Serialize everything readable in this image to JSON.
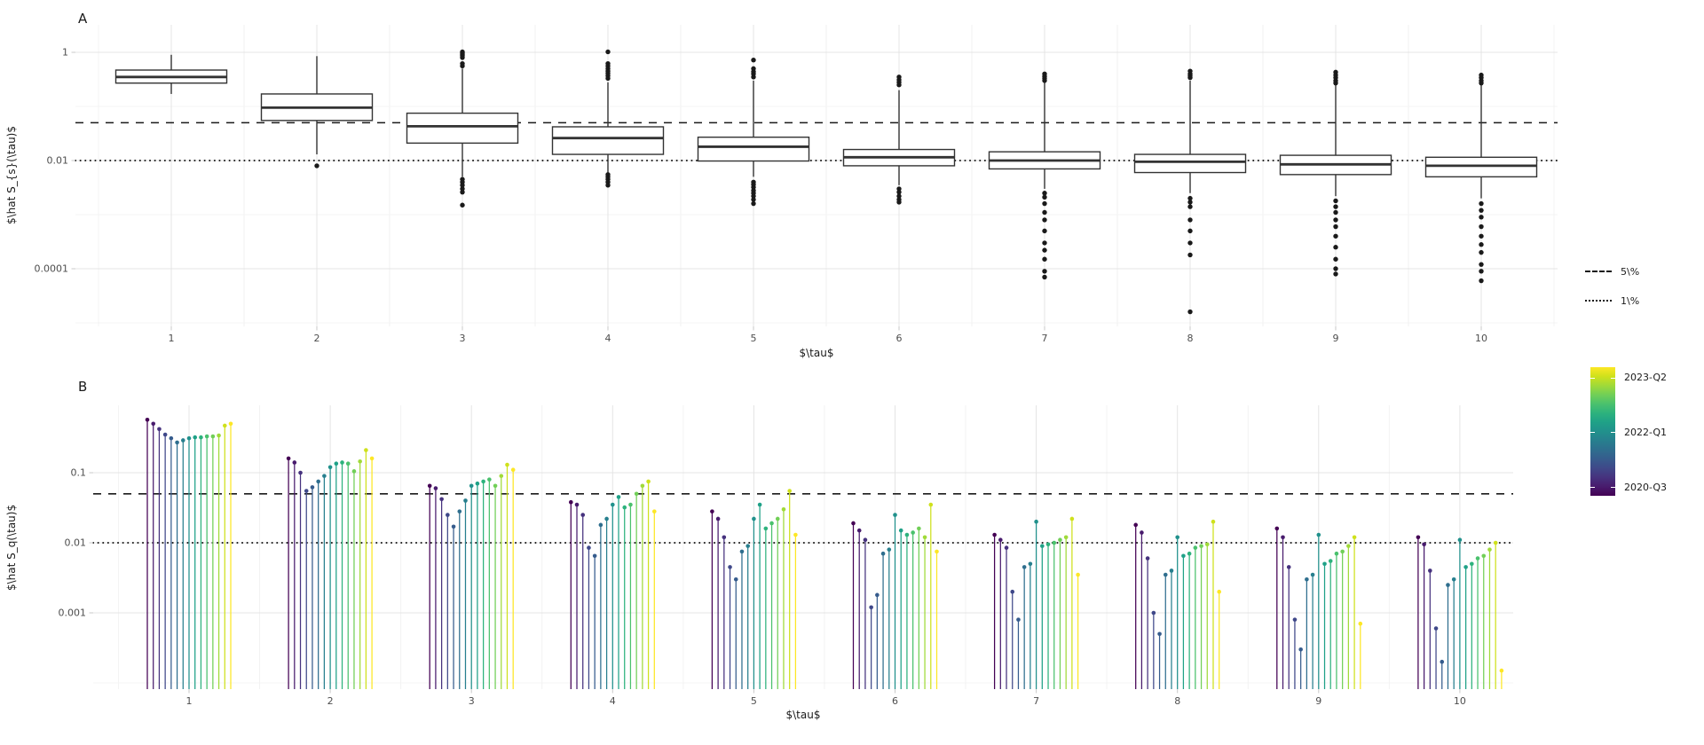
{
  "figure": {
    "background": "#ffffff",
    "grid_major_color": "#e4e4e4",
    "grid_minor_color": "#f2f2f2",
    "tick_color": "#c9c9c9",
    "tick_label_color": "#4d4d4d",
    "box_stroke": "#333333",
    "outlier_color": "#1a1a1a"
  },
  "chart_data": [
    {
      "type": "boxplot",
      "panel_label": "A",
      "xlabel": "$\\tau$",
      "ylabel": "$\\hat S_{s}(\\tau)$",
      "yscale": "log",
      "x_ticks": [
        "1",
        "2",
        "3",
        "4",
        "5",
        "6",
        "7",
        "8",
        "9",
        "10"
      ],
      "y_ticks": [
        {
          "value": 1,
          "label": "1"
        },
        {
          "value": 0.01,
          "label": "0.01"
        },
        {
          "value": 0.0001,
          "label": "0.0001"
        }
      ],
      "y_minor": [
        0.1,
        0.001,
        1e-05
      ],
      "reference_lines": [
        {
          "style": "dashed",
          "value": 0.05,
          "label": "5\\%"
        },
        {
          "style": "dotted",
          "value": 0.01,
          "label": "1\\%"
        }
      ],
      "boxes": [
        {
          "x": 1,
          "whisker_low": 0.17,
          "q1": 0.27,
          "median": 0.35,
          "q3": 0.47,
          "whisker_high": 0.9,
          "outliers_high": [],
          "outliers_low": []
        },
        {
          "x": 2,
          "whisker_low": 0.013,
          "q1": 0.055,
          "median": 0.095,
          "q3": 0.17,
          "whisker_high": 0.85,
          "outliers_high": [],
          "outliers_low": [
            0.008
          ]
        },
        {
          "x": 3,
          "whisker_low": 0.005,
          "q1": 0.021,
          "median": 0.043,
          "q3": 0.075,
          "whisker_high": 0.5,
          "outliers_high": [
            1.02,
            0.97,
            0.92,
            0.87,
            0.8,
            0.62,
            0.56
          ],
          "outliers_low": [
            0.0045,
            0.004,
            0.0035,
            0.003,
            0.0026,
            0.0015
          ]
        },
        {
          "x": 4,
          "whisker_low": 0.006,
          "q1": 0.013,
          "median": 0.026,
          "q3": 0.042,
          "whisker_high": 0.28,
          "outliers_high": [
            1.02,
            0.62,
            0.56,
            0.5,
            0.45,
            0.41,
            0.37,
            0.33
          ],
          "outliers_low": [
            0.0055,
            0.005,
            0.0045,
            0.004,
            0.0035
          ]
        },
        {
          "x": 5,
          "whisker_low": 0.005,
          "q1": 0.0098,
          "median": 0.018,
          "q3": 0.027,
          "whisker_high": 0.3,
          "outliers_high": [
            0.72,
            0.5,
            0.44,
            0.4,
            0.35
          ],
          "outliers_low": [
            0.004,
            0.0036,
            0.0032,
            0.0028,
            0.0025,
            0.0022,
            0.0019,
            0.0016
          ]
        },
        {
          "x": 6,
          "whisker_low": 0.0035,
          "q1": 0.008,
          "median": 0.0115,
          "q3": 0.016,
          "whisker_high": 0.2,
          "outliers_high": [
            0.35,
            0.31,
            0.28,
            0.25
          ],
          "outliers_low": [
            0.003,
            0.0026,
            0.0022,
            0.0019,
            0.0017
          ]
        },
        {
          "x": 7,
          "whisker_low": 0.003,
          "q1": 0.007,
          "median": 0.01,
          "q3": 0.0145,
          "whisker_high": 0.28,
          "outliers_high": [
            0.4,
            0.36,
            0.33,
            0.3
          ],
          "outliers_low": [
            0.0025,
            0.0021,
            0.0016,
            0.0011,
            0.0008,
            0.0005,
            0.0003,
            0.00022,
            0.00015,
            9e-05,
            7e-05
          ]
        },
        {
          "x": 8,
          "whisker_low": 0.0025,
          "q1": 0.006,
          "median": 0.0095,
          "q3": 0.013,
          "whisker_high": 0.3,
          "outliers_high": [
            0.45,
            0.4,
            0.37,
            0.34
          ],
          "outliers_low": [
            0.002,
            0.0017,
            0.0014,
            0.0008,
            0.0005,
            0.0003,
            0.00018,
            1.6e-05
          ]
        },
        {
          "x": 9,
          "whisker_low": 0.0022,
          "q1": 0.0055,
          "median": 0.0085,
          "q3": 0.0125,
          "whisker_high": 0.28,
          "outliers_high": [
            0.43,
            0.38,
            0.34,
            0.3,
            0.27
          ],
          "outliers_low": [
            0.0018,
            0.0014,
            0.0011,
            0.0008,
            0.0006,
            0.0004,
            0.00025,
            0.00015,
            0.0001,
            8e-05
          ]
        },
        {
          "x": 10,
          "whisker_low": 0.002,
          "q1": 0.005,
          "median": 0.008,
          "q3": 0.0115,
          "whisker_high": 0.26,
          "outliers_high": [
            0.38,
            0.34,
            0.3,
            0.27
          ],
          "outliers_low": [
            0.0016,
            0.0012,
            0.0009,
            0.0006,
            0.0004,
            0.00028,
            0.0002,
            0.00012,
            9e-05,
            6e-05
          ]
        }
      ]
    },
    {
      "type": "lollipop",
      "panel_label": "B",
      "xlabel": "$\\tau$",
      "ylabel": "$\\hat S_q(\\tau)$",
      "yscale": "log",
      "x_ticks": [
        "1",
        "2",
        "3",
        "4",
        "5",
        "6",
        "7",
        "8",
        "9",
        "10"
      ],
      "y_ticks": [
        {
          "value": 0.1,
          "label": "0.1"
        },
        {
          "value": 0.01,
          "label": "0.01"
        },
        {
          "value": 0.001,
          "label": "0.001"
        }
      ],
      "y_minor": [
        0.0001
      ],
      "reference_lines": [
        {
          "style": "dashed",
          "value": 0.05,
          "label": "5\\%"
        },
        {
          "style": "dotted",
          "value": 0.01,
          "label": "1\\%"
        }
      ],
      "stems_per_group": 15,
      "colorbar": {
        "labels": [
          {
            "text": "2023-Q2",
            "pos": 0.08
          },
          {
            "text": "2022-Q1",
            "pos": 0.5
          },
          {
            "text": "2020-Q3",
            "pos": 0.93
          }
        ],
        "colors": [
          "#440154",
          "#481b6d",
          "#46327e",
          "#3f4889",
          "#365c8d",
          "#2e6e8e",
          "#277f8e",
          "#21918c",
          "#1fa187",
          "#2db27d",
          "#4ac16d",
          "#71cf57",
          "#a0da39",
          "#cfe11c",
          "#fde725"
        ]
      },
      "groups": [
        {
          "x": 1,
          "values": [
            0.57,
            0.5,
            0.42,
            0.35,
            0.31,
            0.27,
            0.29,
            0.31,
            0.32,
            0.32,
            0.33,
            0.33,
            0.34,
            0.47,
            0.5
          ]
        },
        {
          "x": 2,
          "values": [
            0.16,
            0.14,
            0.1,
            0.055,
            0.062,
            0.075,
            0.09,
            0.12,
            0.135,
            0.14,
            0.135,
            0.105,
            0.145,
            0.21,
            0.16
          ]
        },
        {
          "x": 3,
          "values": [
            0.065,
            0.06,
            0.042,
            0.025,
            0.017,
            0.028,
            0.04,
            0.065,
            0.07,
            0.075,
            0.08,
            0.065,
            0.09,
            0.13,
            0.11
          ]
        },
        {
          "x": 4,
          "values": [
            0.038,
            0.035,
            0.025,
            0.0085,
            0.0065,
            0.018,
            0.022,
            0.035,
            0.045,
            0.032,
            0.035,
            0.05,
            0.065,
            0.075,
            0.028
          ]
        },
        {
          "x": 5,
          "values": [
            0.028,
            0.022,
            0.012,
            0.0045,
            0.003,
            0.0075,
            0.009,
            0.022,
            0.035,
            0.016,
            0.019,
            0.022,
            0.03,
            0.055,
            0.013
          ]
        },
        {
          "x": 6,
          "values": [
            0.019,
            0.015,
            0.011,
            0.0012,
            0.0018,
            0.007,
            0.008,
            0.025,
            0.015,
            0.013,
            0.014,
            0.016,
            0.012,
            0.035,
            0.0075
          ]
        },
        {
          "x": 7,
          "values": [
            0.013,
            0.011,
            0.0085,
            0.002,
            0.0008,
            0.0045,
            0.005,
            0.02,
            0.009,
            0.0095,
            0.01,
            0.011,
            0.012,
            0.022,
            0.0035
          ]
        },
        {
          "x": 8,
          "values": [
            0.018,
            0.014,
            0.006,
            0.001,
            0.0005,
            0.0035,
            0.004,
            0.012,
            0.0065,
            0.007,
            0.0085,
            0.009,
            0.0095,
            0.02,
            0.002
          ]
        },
        {
          "x": 9,
          "values": [
            0.016,
            0.012,
            0.0045,
            0.0008,
            0.0003,
            0.003,
            0.0035,
            0.013,
            0.005,
            0.0055,
            0.007,
            0.0075,
            0.009,
            0.012,
            0.0007
          ]
        },
        {
          "x": 10,
          "values": [
            0.012,
            0.0095,
            0.004,
            0.0006,
            0.0002,
            0.0025,
            0.003,
            0.011,
            0.0045,
            0.005,
            0.006,
            0.0065,
            0.008,
            0.01,
            0.00015
          ]
        }
      ]
    }
  ]
}
